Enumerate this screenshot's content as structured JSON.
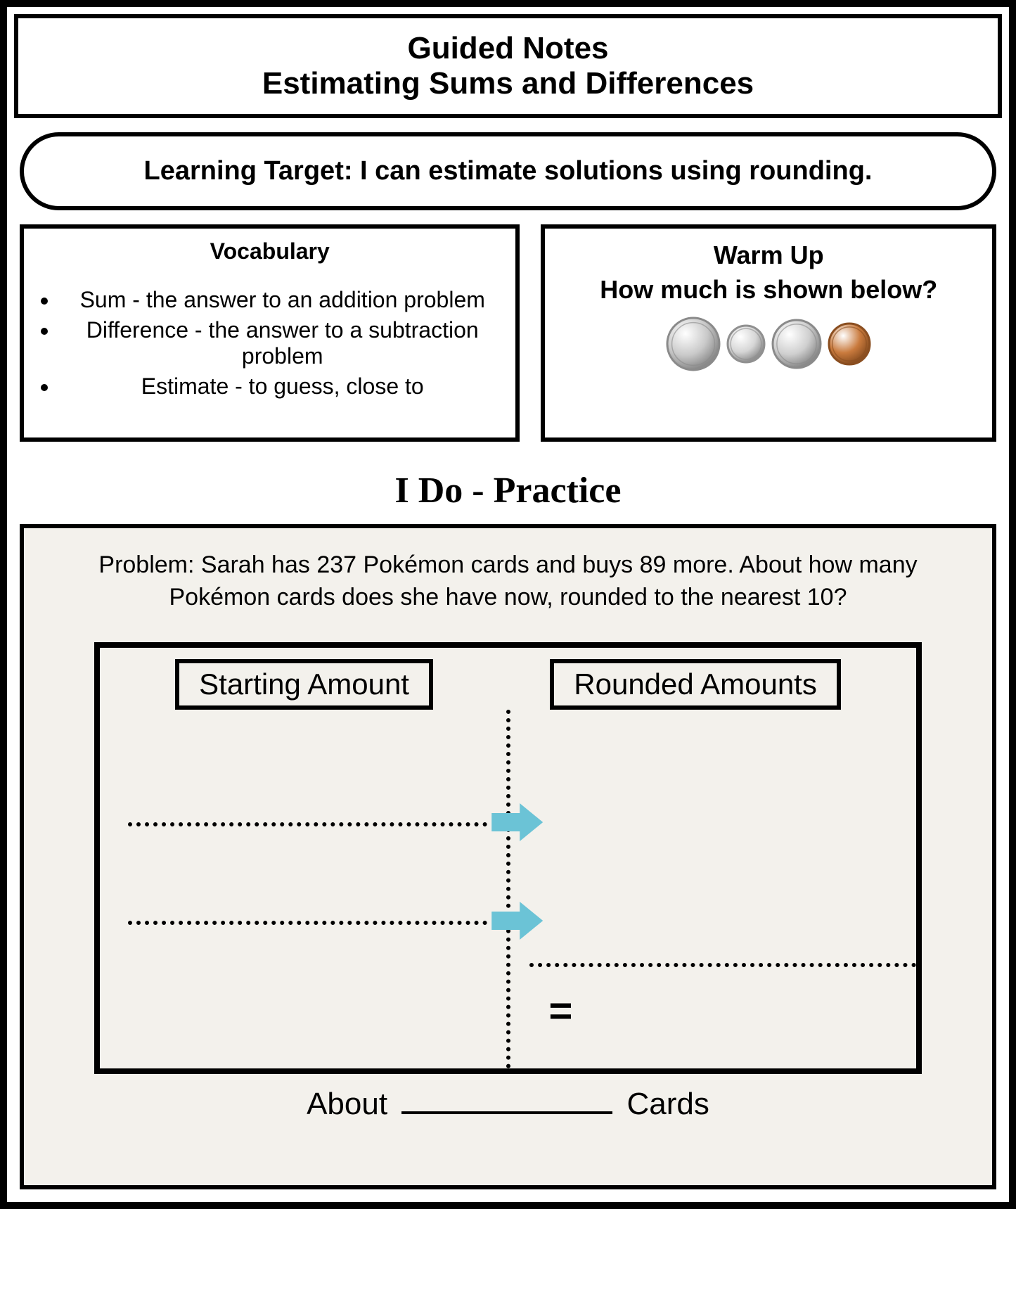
{
  "header": {
    "line1": "Guided Notes",
    "line2": "Estimating Sums and Differences"
  },
  "learning_target": "Learning Target: I can estimate solutions using rounding.",
  "vocab": {
    "title": "Vocabulary",
    "items": [
      "Sum - the answer to an addition problem",
      "Difference - the answer to a subtraction problem",
      "Estimate - to guess, close to"
    ]
  },
  "warmup": {
    "title_line1": "Warm Up",
    "title_line2": "How much is shown below?",
    "coins": [
      {
        "name": "quarter",
        "diameter": 78,
        "fill": "#c9c9c9",
        "stroke": "#8a8a8a"
      },
      {
        "name": "dime",
        "diameter": 56,
        "fill": "#d6d6d6",
        "stroke": "#909090"
      },
      {
        "name": "nickel",
        "diameter": 72,
        "fill": "#cfcfcf",
        "stroke": "#8a8a8a"
      },
      {
        "name": "penny",
        "diameter": 62,
        "fill": "#c97a3d",
        "stroke": "#8a4e20"
      }
    ]
  },
  "section_title": "I Do - Practice",
  "practice": {
    "problem": "Problem: Sarah has 237 Pokémon cards and buys 89 more. About how many Pokémon cards does she have now, rounded to the nearest 10?",
    "col1_header": "Starting Amount",
    "col2_header": "Rounded Amounts",
    "equals": "=",
    "answer_prefix": "About",
    "answer_suffix": "Cards",
    "arrow_color": "#6bc3d6"
  }
}
